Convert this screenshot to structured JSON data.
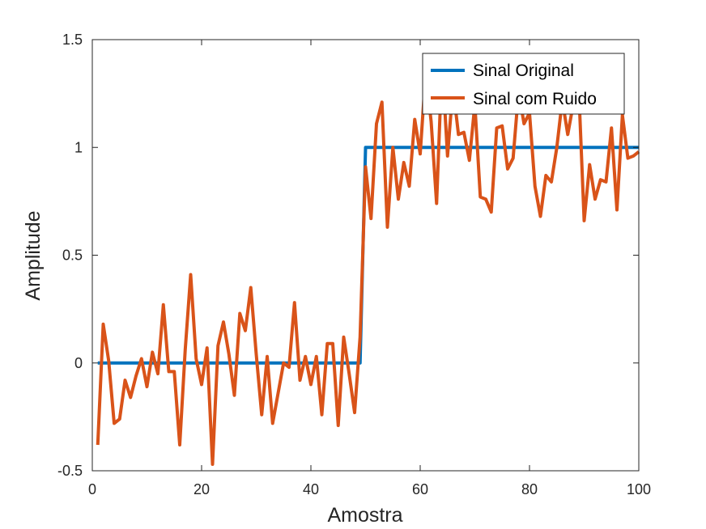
{
  "chart_data": {
    "type": "line",
    "title": "",
    "xlabel": "Amostra",
    "ylabel": "Amplitude",
    "xlim": [
      0,
      100
    ],
    "ylim": [
      -0.5,
      1.5
    ],
    "xticks": [
      0,
      20,
      40,
      60,
      80,
      100
    ],
    "xtick_labels": [
      "0",
      "20",
      "40",
      "60",
      "80",
      "100"
    ],
    "yticks": [
      -0.5,
      0,
      0.5,
      1,
      1.5
    ],
    "ytick_labels": [
      "-0.5",
      "0",
      "0.5",
      "1",
      "1.5"
    ],
    "grid": false,
    "legend_position": "top-right",
    "series": [
      {
        "name": "Sinal Original",
        "color": "#0072BD",
        "x": [
          1,
          49,
          50,
          100
        ],
        "y": [
          0,
          0,
          1,
          1
        ]
      },
      {
        "name": "Sinal com Ruido",
        "color": "#D95319",
        "x": [
          1,
          2,
          3,
          4,
          5,
          6,
          7,
          8,
          9,
          10,
          11,
          12,
          13,
          14,
          15,
          16,
          17,
          18,
          19,
          20,
          21,
          22,
          23,
          24,
          25,
          26,
          27,
          28,
          29,
          30,
          31,
          32,
          33,
          34,
          35,
          36,
          37,
          38,
          39,
          40,
          41,
          42,
          43,
          44,
          45,
          46,
          47,
          48,
          49,
          50,
          51,
          52,
          53,
          54,
          55,
          56,
          57,
          58,
          59,
          60,
          61,
          62,
          63,
          64,
          65,
          66,
          67,
          68,
          69,
          70,
          71,
          72,
          73,
          74,
          75,
          76,
          77,
          78,
          79,
          80,
          81,
          82,
          83,
          84,
          85,
          86,
          87,
          88,
          89,
          90,
          91,
          92,
          93,
          94,
          95,
          96,
          97,
          98,
          99,
          100
        ],
        "y": [
          -0.38,
          0.18,
          0.01,
          -0.28,
          -0.26,
          -0.08,
          -0.16,
          -0.06,
          0.02,
          -0.11,
          0.05,
          -0.05,
          0.27,
          -0.04,
          -0.04,
          -0.38,
          0.06,
          0.41,
          0.02,
          -0.1,
          0.07,
          -0.47,
          0.08,
          0.19,
          0.04,
          -0.15,
          0.23,
          0.15,
          0.35,
          0.04,
          -0.24,
          0.03,
          -0.28,
          -0.14,
          0.0,
          -0.02,
          0.28,
          -0.08,
          0.03,
          -0.1,
          0.03,
          -0.24,
          0.09,
          0.09,
          -0.29,
          0.12,
          -0.05,
          -0.23,
          0.12,
          0.91,
          0.67,
          1.11,
          1.21,
          0.63,
          1.0,
          0.76,
          0.93,
          0.82,
          1.13,
          0.97,
          1.35,
          1.12,
          0.74,
          1.4,
          0.96,
          1.28,
          1.06,
          1.07,
          0.94,
          1.2,
          0.77,
          0.76,
          0.7,
          1.09,
          1.1,
          0.9,
          0.95,
          1.26,
          1.11,
          1.16,
          0.82,
          0.68,
          0.87,
          0.84,
          1.0,
          1.22,
          1.06,
          1.2,
          1.28,
          0.66,
          0.92,
          0.76,
          0.85,
          0.84,
          1.09,
          0.71,
          1.15,
          0.95,
          0.96,
          0.98
        ]
      }
    ]
  }
}
